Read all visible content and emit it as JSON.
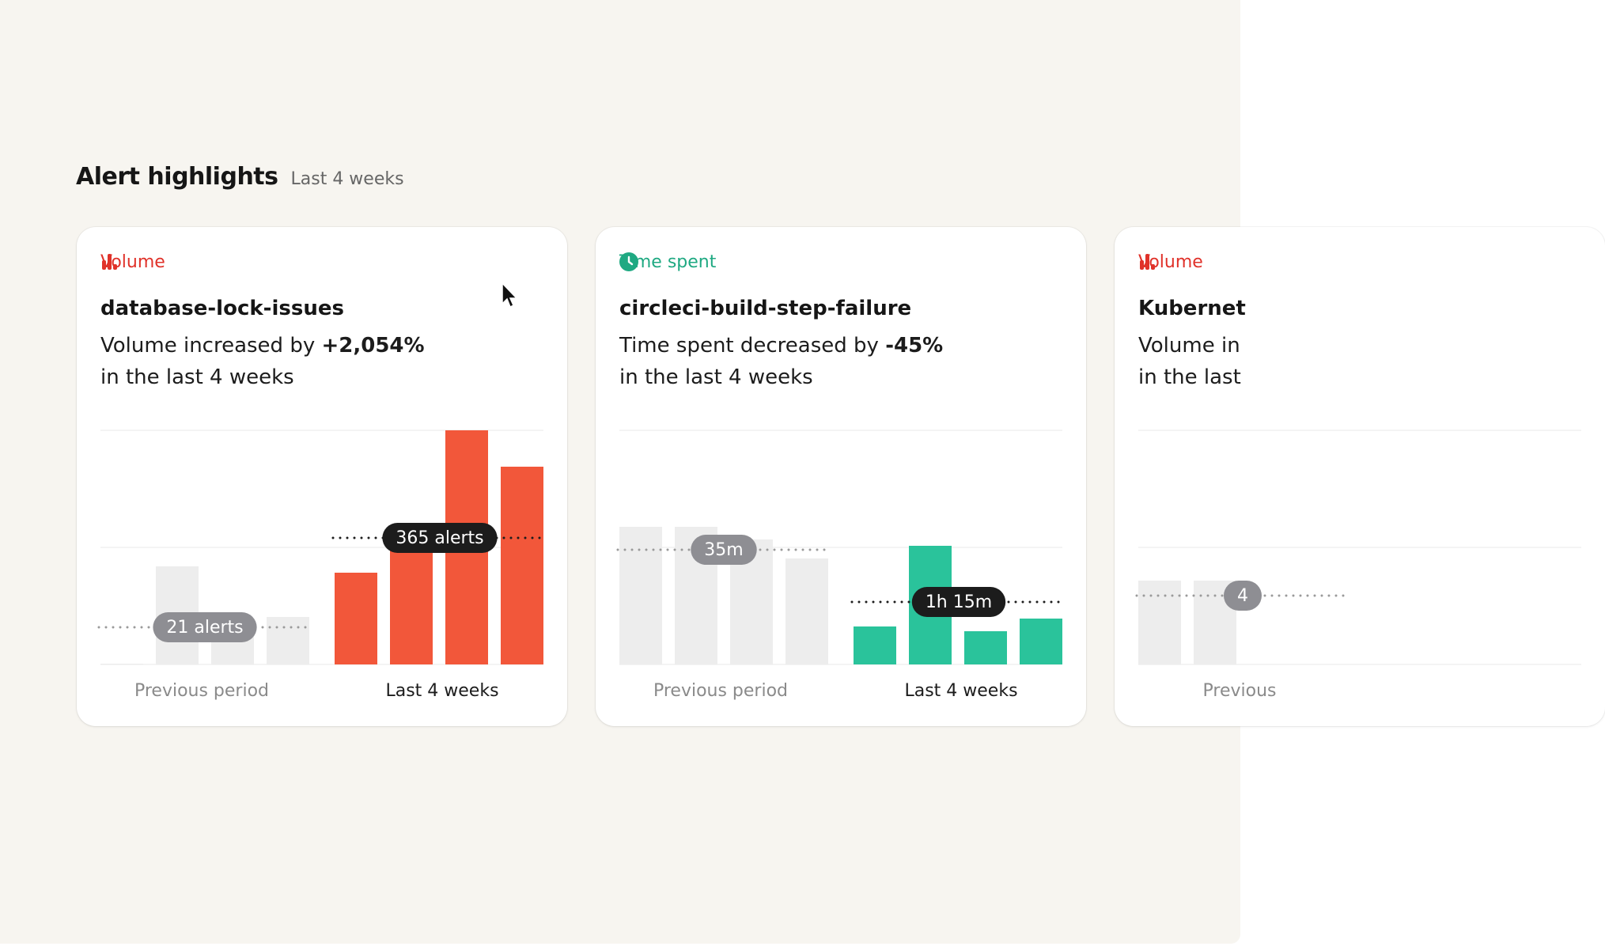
{
  "header": {
    "title": "Alert highlights",
    "subtitle": "Last 4 weeks"
  },
  "cards": [
    {
      "tag": "Volume",
      "icon": "bars",
      "tag_color": "#e0322a",
      "title": "database-lock-issues",
      "summary": "Volume increased by",
      "change": "+2,054%",
      "period_text": "in the last 4 weeks",
      "chart_data": {
        "type": "bar",
        "ylim": [
          0,
          296
        ],
        "yticks": [
          0,
          148,
          296
        ],
        "grid": true,
        "groups": [
          {
            "label": "Previous period",
            "color": "#ededed",
            "values": [
              1,
              124,
              50,
              60
            ],
            "average": 47,
            "average_label": "21 alerts"
          },
          {
            "label": "Last 4 weeks",
            "color": "#f2573a",
            "values": [
              116,
              150,
              296,
              250
            ],
            "average": 160,
            "average_label": "365 alerts"
          }
        ]
      }
    },
    {
      "tag": "Time spent",
      "icon": "clock",
      "tag_color": "#1fa982",
      "title": "circleci-build-step-failure",
      "summary": "Time spent decreased by",
      "change": "-45%",
      "period_text": "in the last 4 weeks",
      "chart_data": {
        "type": "bar",
        "ylim": [
          0,
          296
        ],
        "yticks": [
          0,
          148,
          296
        ],
        "grid": true,
        "groups": [
          {
            "label": "Previous period",
            "color": "#ededed",
            "values": [
              174,
              174,
              158,
              134
            ],
            "average": 145,
            "average_label": "35m"
          },
          {
            "label": "Last 4 weeks",
            "color": "#2ac39b",
            "values": [
              48,
              150,
              42,
              58
            ],
            "average": 79,
            "average_label": "1h 15m"
          }
        ]
      }
    },
    {
      "tag": "Volume",
      "icon": "bars",
      "tag_color": "#e0322a",
      "title": "Kubernet",
      "summary": "Volume in",
      "period_text": "in the last",
      "chart_data": {
        "type": "bar",
        "ylim": [
          0,
          296
        ],
        "yticks": [
          0,
          148,
          296
        ],
        "grid": true,
        "groups": [
          {
            "label": "Previous",
            "color": "#ededed",
            "values": [
              106,
              106
            ],
            "average": 87,
            "average_label": "4"
          }
        ]
      }
    }
  ]
}
